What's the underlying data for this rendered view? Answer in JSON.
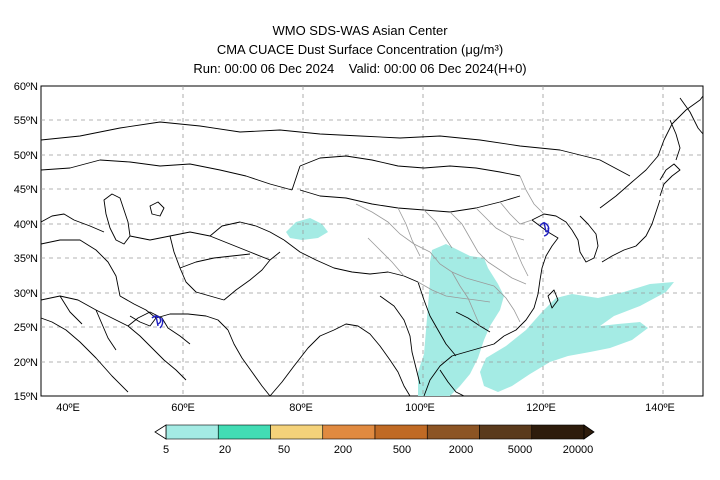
{
  "header": {
    "line1": "WMO SDS-WAS Asian Center",
    "line2": "CMA CUACE Dust Surface Concentration (μg/m³)",
    "run_label": "Run: 00:00 06 Dec 2024",
    "valid_label": "Valid: 00:00 06 Dec 2024(H+0)"
  },
  "map": {
    "lat_labels": [
      "60ºN",
      "55ºN",
      "50ºN",
      "45ºN",
      "40ºN",
      "35ºN",
      "30ºN",
      "25ºN",
      "20ºN",
      "15ºN"
    ],
    "lon_labels": [
      "40ºE",
      "60ºE",
      "80ºE",
      "100ºE",
      "120ºE",
      "140ºE"
    ],
    "dust_color": "#a4ebe4",
    "contour_color": "#2020c0"
  },
  "colorbar": {
    "tick_labels": [
      "5",
      "20",
      "50",
      "200",
      "500",
      "2000",
      "5000",
      "20000"
    ],
    "colors": [
      "#a4ebe4",
      "#42dcb4",
      "#f4d27a",
      "#e08a40",
      "#c06a24",
      "#8c5424",
      "#5a3a1c",
      "#2e1c0c"
    ]
  }
}
